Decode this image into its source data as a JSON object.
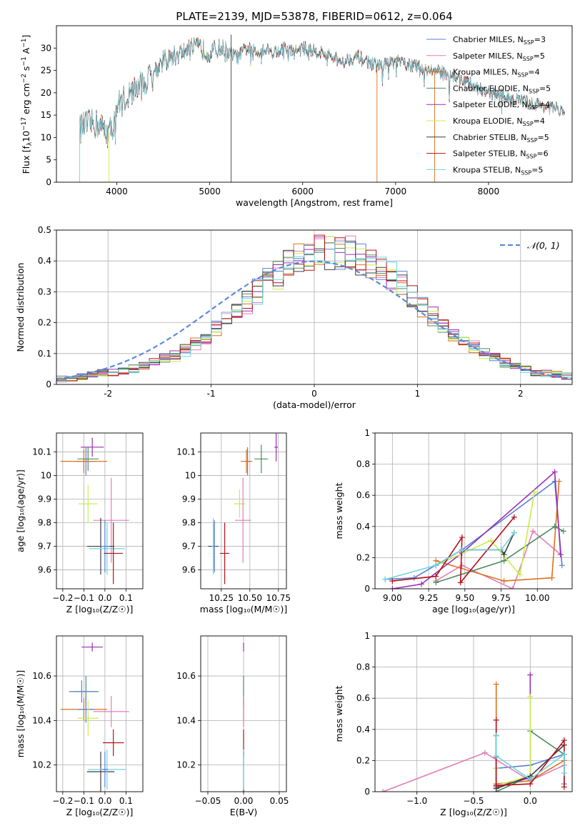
{
  "figure_title": "PLATE=2139, MJD=53878, FIBERID=0612, z=0.064",
  "colors": {
    "Chabrier MILES": "#5b7fd6",
    "Salpeter MILES": "#e07fb8",
    "Kroupa MILES": "#d9711f",
    "Chabrier ELODIE": "#4d8c5c",
    "Salpeter ELODIE": "#9b2fb5",
    "Kroupa ELODIE": "#c9ee4a",
    "Chabrier STELIB": "#3f3f3f",
    "Salpeter STELIB": "#b3101a",
    "Kroupa STELIB": "#6fd5df"
  },
  "chart_data": [
    {
      "type": "line",
      "title": "PLATE=2139, MJD=53878, FIBERID=0612, z=0.064",
      "xlabel": "wavelength [Angstrom, rest frame]",
      "ylabel": "Flux [f_λ 10^-17 erg cm^-2 s^-1 A^-1]",
      "xlim": [
        3350,
        8900
      ],
      "ylim": [
        0,
        35
      ],
      "xticks": [
        4000,
        5000,
        6000,
        7000,
        8000
      ],
      "yticks": [
        0,
        5,
        10,
        15,
        20,
        25,
        30
      ],
      "grid": false,
      "legend_position": "upper-right",
      "continuum": {
        "x": [
          3600,
          3700,
          3800,
          3900,
          3950,
          4000,
          4100,
          4200,
          4300,
          4400,
          4500,
          4600,
          4700,
          4800,
          4900,
          5000,
          5100,
          5200,
          5300,
          5400,
          5500,
          5600,
          5700,
          5800,
          5900,
          6000,
          6200,
          6400,
          6600,
          6800,
          7000,
          7200,
          7400,
          7600,
          7800,
          8000,
          8200,
          8400,
          8600,
          8800
        ],
        "y": [
          12,
          13,
          13,
          11,
          12,
          17,
          19,
          21,
          22,
          25,
          27,
          28,
          29,
          30,
          30,
          29,
          30,
          29,
          28,
          30,
          29,
          30,
          29,
          30,
          29,
          30,
          29,
          27,
          28,
          26,
          27,
          26,
          25,
          24,
          22,
          20,
          19,
          18,
          17,
          16
        ]
      },
      "series": [
        {
          "name": "Chabrier MILES, N_SSP=3",
          "label_main": "Chabrier MILES, N",
          "label_sub": "SSP",
          "label_end": "=3"
        },
        {
          "name": "Salpeter MILES, N_SSP=5",
          "label_main": "Salpeter MILES, N",
          "label_sub": "SSP",
          "label_end": "=5"
        },
        {
          "name": "Kroupa MILES, N_SSP=4",
          "label_main": "Kroupa MILES, N",
          "label_sub": "SSP",
          "label_end": "=4"
        },
        {
          "name": "Chabrier ELODIE, N_SSP=5",
          "label_main": "Chabrier ELODIE, N",
          "label_sub": "SSP",
          "label_end": "=5"
        },
        {
          "name": "Salpeter ELODIE, N_SSP=4",
          "label_main": "Salpeter ELODIE, N",
          "label_sub": "SSP",
          "label_end": "=4"
        },
        {
          "name": "Kroupa ELODIE, N_SSP=4",
          "label_main": "Kroupa ELODIE, N",
          "label_sub": "SSP",
          "label_end": "=4"
        },
        {
          "name": "Chabrier STELIB, N_SSP=5",
          "label_main": "Chabrier STELIB, N",
          "label_sub": "SSP",
          "label_end": "=5"
        },
        {
          "name": "Salpeter STELIB, N_SSP=6",
          "label_main": "Salpeter STELIB, N",
          "label_sub": "SSP",
          "label_end": "=6"
        },
        {
          "name": "Kroupa STELIB, N_SSP=5",
          "label_main": "Kroupa STELIB, N",
          "label_sub": "SSP",
          "label_end": "=5"
        }
      ]
    },
    {
      "type": "histogram",
      "xlabel": "(data-model)/error",
      "ylabel": "Normed distribution",
      "xlim": [
        -2.5,
        2.5
      ],
      "ylim": [
        0,
        0.5
      ],
      "xticks": [
        -2,
        -1,
        0,
        1,
        2
      ],
      "yticks": [
        0.0,
        0.1,
        0.2,
        0.3,
        0.4,
        0.5
      ],
      "grid": true,
      "legend_position": "upper-right",
      "reference_curve": {
        "name": "N(0,1)",
        "label": "𝒩(0, 1)",
        "style": "dashed",
        "color": "#5b8bd9"
      },
      "bins": {
        "edges_start": -2.5,
        "bin_width": 0.1,
        "shape": [
          0.02,
          0.022,
          0.025,
          0.03,
          0.035,
          0.04,
          0.045,
          0.05,
          0.06,
          0.07,
          0.08,
          0.09,
          0.11,
          0.13,
          0.15,
          0.18,
          0.21,
          0.24,
          0.27,
          0.3,
          0.33,
          0.36,
          0.39,
          0.41,
          0.42,
          0.43,
          0.43,
          0.43,
          0.42,
          0.41,
          0.4,
          0.38,
          0.35,
          0.32,
          0.28,
          0.25,
          0.22,
          0.19,
          0.16,
          0.14,
          0.12,
          0.1,
          0.085,
          0.07,
          0.06,
          0.05,
          0.04,
          0.035,
          0.03,
          0.025
        ]
      }
    },
    {
      "type": "scatter",
      "xlabel": "Z [log₁₀(Z/Z☉)]",
      "ylabel": "age  [log₁₀(age/yr)]",
      "xlim": [
        -0.23,
        0.18
      ],
      "ylim": [
        9.52,
        10.18
      ],
      "xticks": [
        -0.2,
        -0.1,
        0.0,
        0.1
      ],
      "xticklabels": [
        "−0.2",
        "−0.1",
        "0.0",
        "0.1"
      ],
      "yticks": [
        9.6,
        9.7,
        9.8,
        9.9,
        10.0,
        10.1
      ],
      "grid": true,
      "points": [
        {
          "s": "Salpeter ELODIE",
          "x": -0.06,
          "y": 10.12,
          "ex": 0.055,
          "ey": 0.04
        },
        {
          "s": "Chabrier ELODIE",
          "x": -0.08,
          "y": 10.07,
          "ex": 0.05,
          "ey": 0.05
        },
        {
          "s": "Chabrier MILES",
          "x": -0.09,
          "y": 10.06,
          "ex": 0.05,
          "ey": 0.06
        },
        {
          "s": "Kroupa MILES",
          "x": -0.1,
          "y": 10.06,
          "ex": 0.11,
          "ey": 0.05
        },
        {
          "s": "Kroupa ELODIE",
          "x": -0.08,
          "y": 9.88,
          "ex": 0.045,
          "ey": 0.08
        },
        {
          "s": "Salpeter MILES",
          "x": 0.03,
          "y": 9.81,
          "ex": 0.085,
          "ey": 0.18
        },
        {
          "s": "Chabrier STELIB",
          "x": -0.02,
          "y": 9.7,
          "ex": 0.065,
          "ey": 0.12
        },
        {
          "s": "Kroupa STELIB",
          "x": 0.01,
          "y": 9.69,
          "ex": 0.085,
          "ey": 0.11
        },
        {
          "s": "Chabrier MILES",
          "x": 0.0,
          "y": 9.7,
          "ex": 0.02,
          "ey": 0.11
        },
        {
          "s": "Salpeter STELIB",
          "x": 0.04,
          "y": 9.67,
          "ex": 0.045,
          "ey": 0.13
        }
      ]
    },
    {
      "type": "scatter",
      "xlabel": "mass [log₁₀(M/M☉)]",
      "ylabel": "",
      "xlim": [
        10.07,
        10.82
      ],
      "ylim": [
        9.52,
        10.18
      ],
      "xticks": [
        10.25,
        10.5,
        10.75
      ],
      "xticklabels": [
        "10.25",
        "10.50",
        "10.75"
      ],
      "yticks": [
        9.6,
        9.7,
        9.8,
        9.9,
        10.0,
        10.1
      ],
      "grid": true,
      "points": [
        {
          "s": "Salpeter ELODIE",
          "x": 10.73,
          "y": 10.12,
          "ex": 0.015,
          "ey": 0.06
        },
        {
          "s": "Chabrier ELODIE",
          "x": 10.6,
          "y": 10.07,
          "ex": 0.06,
          "ey": 0.06
        },
        {
          "s": "Chabrier MILES",
          "x": 10.48,
          "y": 10.06,
          "ex": 0.03,
          "ey": 0.06
        },
        {
          "s": "Kroupa MILES",
          "x": 10.47,
          "y": 10.06,
          "ex": 0.05,
          "ey": 0.05
        },
        {
          "s": "Kroupa ELODIE",
          "x": 10.41,
          "y": 9.88,
          "ex": 0.05,
          "ey": 0.06
        },
        {
          "s": "Salpeter MILES",
          "x": 10.44,
          "y": 9.81,
          "ex": 0.07,
          "ey": 0.18
        },
        {
          "s": "Chabrier STELIB",
          "x": 10.18,
          "y": 9.7,
          "ex": 0.045,
          "ey": 0.1
        },
        {
          "s": "Kroupa STELIB",
          "x": 10.18,
          "y": 9.7,
          "ex": 0.015,
          "ey": 0.12
        },
        {
          "s": "Chabrier MILES",
          "x": 10.19,
          "y": 9.7,
          "ex": 0.015,
          "ey": 0.11
        },
        {
          "s": "Salpeter STELIB",
          "x": 10.28,
          "y": 9.67,
          "ex": 0.04,
          "ey": 0.13
        }
      ]
    },
    {
      "type": "line",
      "xlabel": "age  [log₁₀(age/yr)]",
      "ylabel": "mass weight",
      "xlim": [
        8.88,
        10.24
      ],
      "ylim": [
        0,
        1
      ],
      "xticks": [
        9.0,
        9.25,
        9.5,
        9.75,
        10.0
      ],
      "xticklabels": [
        "9.00",
        "9.25",
        "9.50",
        "9.75",
        "10.00"
      ],
      "yticks": [
        0.0,
        0.2,
        0.4,
        0.6,
        0.8,
        1.0
      ],
      "grid": true,
      "series": [
        {
          "s": "Chabrier MILES",
          "x": [
            8.95,
            9.15,
            9.48,
            10.12,
            10.17
          ],
          "y": [
            0.06,
            0.07,
            0.25,
            0.69,
            0.15
          ]
        },
        {
          "s": "Salpeter MILES",
          "x": [
            9.3,
            9.48,
            9.83,
            9.97,
            10.16
          ],
          "y": [
            0.05,
            0.15,
            0.0,
            0.37,
            0.22
          ]
        },
        {
          "s": "Kroupa MILES",
          "x": [
            9.3,
            9.77,
            10.1,
            10.15
          ],
          "y": [
            0.18,
            0.05,
            0.07,
            0.69
          ]
        },
        {
          "s": "Chabrier ELODIE",
          "x": [
            9.3,
            9.77,
            10.12,
            10.18
          ],
          "y": [
            0.04,
            0.18,
            0.4,
            0.37
          ]
        },
        {
          "s": "Salpeter ELODIE",
          "x": [
            9.0,
            9.2,
            9.48,
            10.12,
            10.16
          ],
          "y": [
            0.0,
            0.03,
            0.23,
            0.75,
            0.22
          ]
        },
        {
          "s": "Kroupa ELODIE",
          "x": [
            9.3,
            9.68,
            9.88,
            9.98
          ],
          "y": [
            0.15,
            0.31,
            0.09,
            0.62
          ]
        },
        {
          "s": "Chabrier STELIB",
          "x": [
            9.3,
            9.48,
            9.75,
            9.77,
            9.84
          ],
          "y": [
            0.15,
            0.25,
            0.25,
            0.22,
            0.36
          ]
        },
        {
          "s": "Salpeter STELIB",
          "x": [
            9.0,
            9.3,
            9.48,
            9.47,
            9.84
          ],
          "y": [
            0.05,
            0.08,
            0.33,
            0.04,
            0.46
          ]
        },
        {
          "s": "Kroupa STELIB",
          "x": [
            8.95,
            9.3,
            9.48,
            9.75,
            9.84
          ],
          "y": [
            0.06,
            0.15,
            0.25,
            0.25,
            0.36
          ]
        }
      ]
    },
    {
      "type": "scatter",
      "xlabel": "Z [log₁₀(Z/Z☉)]",
      "ylabel": "mass [log₁₀(M/M☉)]",
      "xlim": [
        -0.23,
        0.18
      ],
      "ylim": [
        10.08,
        10.78
      ],
      "xticks": [
        -0.2,
        -0.1,
        0.0,
        0.1
      ],
      "xticklabels": [
        "−0.2",
        "−0.1",
        "0.0",
        "0.1"
      ],
      "yticks": [
        10.2,
        10.4,
        10.6
      ],
      "grid": true,
      "points": [
        {
          "s": "Salpeter ELODIE",
          "x": -0.06,
          "y": 10.73,
          "ex": 0.05,
          "ey": 0.02
        },
        {
          "s": "Chabrier ELODIE",
          "x": -0.09,
          "y": 10.53,
          "ex": 0.06,
          "ey": 0.07
        },
        {
          "s": "Chabrier MILES",
          "x": -0.11,
          "y": 10.53,
          "ex": 0.06,
          "ey": 0.05
        },
        {
          "s": "Kroupa MILES",
          "x": -0.1,
          "y": 10.45,
          "ex": 0.11,
          "ey": 0.05
        },
        {
          "s": "Chabrier MILES",
          "x": -0.09,
          "y": 10.45,
          "ex": 0.04,
          "ey": 0.06
        },
        {
          "s": "Kroupa ELODIE",
          "x": -0.08,
          "y": 10.41,
          "ex": 0.05,
          "ey": 0.08
        },
        {
          "s": "Salpeter MILES",
          "x": 0.03,
          "y": 10.44,
          "ex": 0.085,
          "ey": 0.07
        },
        {
          "s": "Salpeter STELIB",
          "x": 0.04,
          "y": 10.3,
          "ex": 0.05,
          "ey": 0.06
        },
        {
          "s": "Chabrier STELIB",
          "x": -0.02,
          "y": 10.17,
          "ex": 0.065,
          "ey": 0.09
        },
        {
          "s": "Kroupa STELIB",
          "x": 0.01,
          "y": 10.18,
          "ex": 0.09,
          "ey": 0.09
        },
        {
          "s": "Chabrier MILES",
          "x": 0.0,
          "y": 10.18,
          "ex": 0.015,
          "ey": 0.08
        }
      ]
    },
    {
      "type": "scatter",
      "xlabel": "E(B-V)",
      "ylabel": "",
      "xlim": [
        -0.06,
        0.06
      ],
      "ylim": [
        10.08,
        10.78
      ],
      "xticks": [
        -0.05,
        0.0,
        0.05
      ],
      "xticklabels": [
        "−0.05",
        "0.00",
        "0.05"
      ],
      "yticks": [
        10.2,
        10.4,
        10.6
      ],
      "grid": true,
      "points": [
        {
          "s": "Salpeter ELODIE",
          "x": 0.0,
          "y": 10.73,
          "ex": 0.0,
          "ey": 0.02
        },
        {
          "s": "Chabrier ELODIE",
          "x": 0.0,
          "y": 10.53,
          "ex": 0.0,
          "ey": 0.07
        },
        {
          "s": "Kroupa MILES",
          "x": 0.0,
          "y": 10.45,
          "ex": 0.0,
          "ey": 0.05
        },
        {
          "s": "Kroupa ELODIE",
          "x": 0.0,
          "y": 10.41,
          "ex": 0.0,
          "ey": 0.05
        },
        {
          "s": "Salpeter MILES",
          "x": 0.0,
          "y": 10.44,
          "ex": 0.0,
          "ey": 0.07
        },
        {
          "s": "Salpeter STELIB",
          "x": 0.0,
          "y": 10.3,
          "ex": 0.0,
          "ey": 0.06
        },
        {
          "s": "Chabrier STELIB",
          "x": 0.0,
          "y": 10.17,
          "ex": 0.0,
          "ey": 0.09
        },
        {
          "s": "Kroupa STELIB",
          "x": 0.0,
          "y": 10.18,
          "ex": 0.0,
          "ey": 0.09
        }
      ]
    },
    {
      "type": "line",
      "xlabel": "Z [log₁₀(Z/Z☉)]",
      "ylabel": "mass weight",
      "xlim": [
        -1.37,
        0.37
      ],
      "ylim": [
        0,
        1
      ],
      "xticks": [
        -1.0,
        -0.5,
        0.0
      ],
      "xticklabels": [
        "−1.0",
        "−0.5",
        "0.0"
      ],
      "yticks": [
        0.0,
        0.2,
        0.4,
        0.6,
        0.8,
        1.0
      ],
      "grid": true,
      "series": [
        {
          "s": "Chabrier MILES",
          "x": [
            -0.3,
            0.0,
            0.3,
            0.3
          ],
          "y": [
            0.15,
            0.17,
            0.24,
            0.05
          ]
        },
        {
          "s": "Salpeter MILES",
          "x": [
            -1.3,
            -0.4,
            0.0,
            0.3
          ],
          "y": [
            0.0,
            0.25,
            0.07,
            0.17
          ]
        },
        {
          "s": "Kroupa MILES",
          "x": [
            -0.3,
            -0.3,
            0.0,
            0.3
          ],
          "y": [
            0.69,
            0.05,
            0.07,
            0.2
          ]
        },
        {
          "s": "Chabrier ELODIE",
          "x": [
            -0.3,
            -0.3,
            0.0,
            0.0,
            0.3
          ],
          "y": [
            0.36,
            0.0,
            0.1,
            0.39,
            0.24
          ]
        },
        {
          "s": "Salpeter ELODIE",
          "x": [
            -0.3,
            -0.3,
            0.0,
            0.0
          ],
          "y": [
            0.22,
            0.03,
            0.09,
            0.75
          ]
        },
        {
          "s": "Kroupa ELODIE",
          "x": [
            -0.3,
            -0.3,
            0.0,
            0.0
          ],
          "y": [
            0.15,
            0.04,
            0.1,
            0.61
          ]
        },
        {
          "s": "Chabrier STELIB",
          "x": [
            -0.3,
            -0.3,
            0.0,
            0.3
          ],
          "y": [
            0.36,
            0.02,
            0.1,
            0.3
          ]
        },
        {
          "s": "Salpeter STELIB",
          "x": [
            -0.3,
            -0.3,
            0.0,
            0.3,
            0.3
          ],
          "y": [
            0.46,
            0.04,
            0.05,
            0.33,
            0.03
          ]
        },
        {
          "s": "Kroupa STELIB",
          "x": [
            -0.3,
            -0.3,
            0.0,
            0.3,
            0.3
          ],
          "y": [
            0.36,
            0.23,
            0.08,
            0.24,
            0.12
          ]
        }
      ]
    }
  ]
}
